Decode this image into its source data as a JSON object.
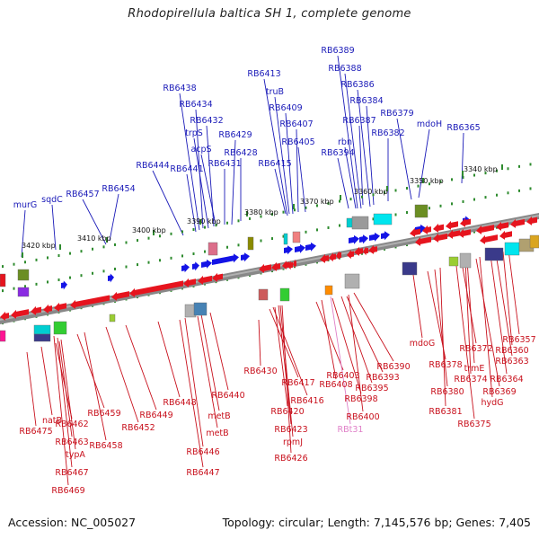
{
  "title": "Rhodopirellula baltica SH 1, complete genome",
  "accession": "Accession: NC_005027",
  "summary": "Topology: circular; Length: 7,145,576 bp; Genes: 7,405",
  "colors": {
    "forward_label": "#1a1ab8",
    "reverse_label": "#c8101c",
    "rna_label": "#e080c8",
    "forward_gene": "#1414e6",
    "reverse_gene": "#e6141e",
    "backbone": "#808080",
    "tick": "#2e8b2e"
  },
  "scale_labels": [
    "3340 kbp",
    "3350 kbp",
    "3360 kbp",
    "3370 kbp",
    "3380 kbp",
    "3390 kbp",
    "3400 kbp",
    "3410 kbp",
    "3420 kbp"
  ],
  "forward_labels": [
    "murG",
    "sqdC",
    "RB6457",
    "RB6454",
    "RB6444",
    "RB6441",
    "RB6438",
    "RB6434",
    "trpS",
    "RB6432",
    "acpS",
    "RB6431",
    "RB6429",
    "RB6428",
    "RB6413",
    "truB",
    "RB6409",
    "RB6407",
    "RB6405",
    "RB6415",
    "RB6389",
    "RB6388",
    "RB6386",
    "RB6384",
    "RB6387",
    "rbn",
    "RB6394",
    "RB6382",
    "RB6379",
    "mdoH",
    "RB6365"
  ],
  "reverse_labels": [
    "RB6475",
    "natB",
    "RB6462",
    "RB6463",
    "typA",
    "RB6467",
    "RB6469",
    "RB6459",
    "RB6458",
    "RB6452",
    "RB6449",
    "RB6448",
    "RB6446",
    "RB6447",
    "metB",
    "metB",
    "RB6440",
    "RB6430",
    "RB6417",
    "RB6416",
    "RB6420",
    "RB6423",
    "rpmJ",
    "RB6426",
    "RB6403",
    "RB6408",
    "RB6398",
    "RB6395",
    "RB6393",
    "RB6400",
    "RB6390",
    "mdoG",
    "RB6378",
    "RB6380",
    "RB6381",
    "RB6375",
    "RB6372",
    "trmE",
    "RB6374",
    "RB6369",
    "hydG",
    "RB6364",
    "RB6363",
    "RB6360",
    "RB6357"
  ],
  "rna_labels": [
    "RBt31"
  ]
}
